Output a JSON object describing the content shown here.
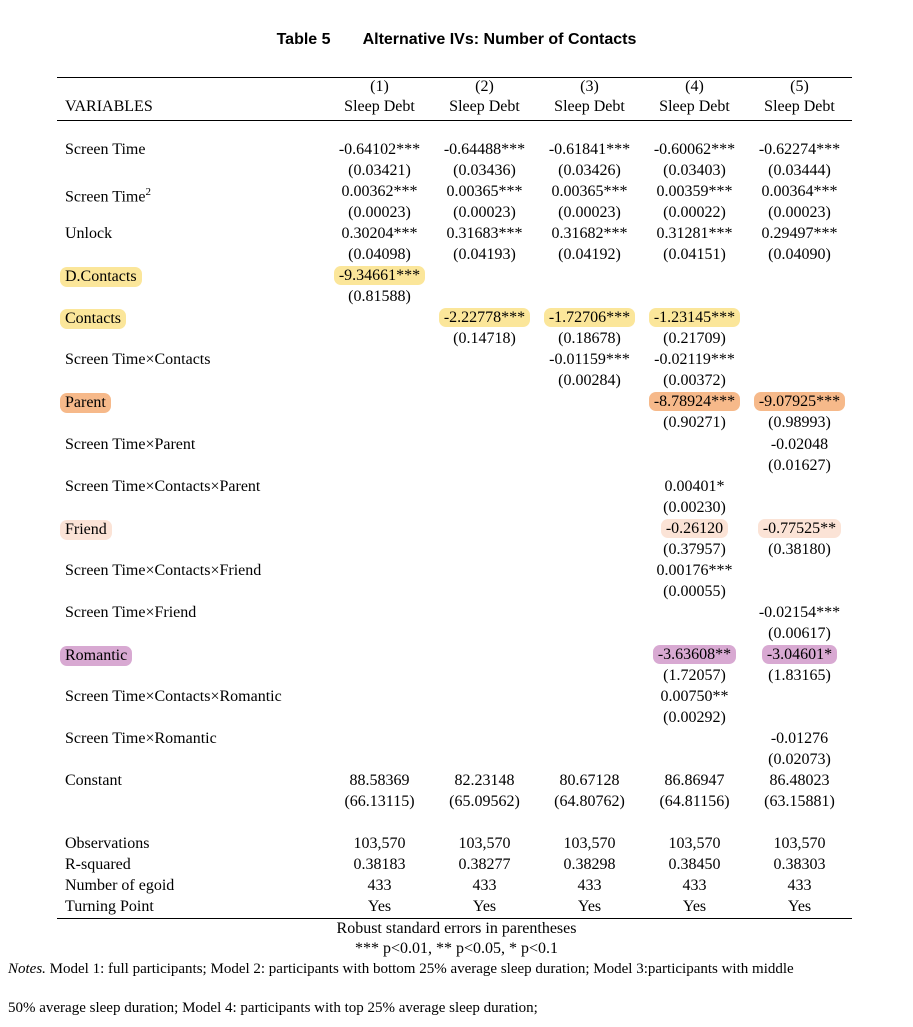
{
  "caption": {
    "number": "Table 5",
    "title": "Alternative IVs: Number of Contacts"
  },
  "header": {
    "variables_label": "VARIABLES",
    "columns": [
      {
        "num": "(1)",
        "dep": "Sleep Debt"
      },
      {
        "num": "(2)",
        "dep": "Sleep Debt"
      },
      {
        "num": "(3)",
        "dep": "Sleep Debt"
      },
      {
        "num": "(4)",
        "dep": "Sleep Debt"
      },
      {
        "num": "(5)",
        "dep": "Sleep Debt"
      }
    ]
  },
  "rows": [
    {
      "label": "Screen Time",
      "coef": [
        "-0.64102***",
        "-0.64488***",
        "-0.61841***",
        "-0.60062***",
        "-0.62274***"
      ],
      "se": [
        "(0.03421)",
        "(0.03436)",
        "(0.03426)",
        "(0.03403)",
        "(0.03444)"
      ]
    },
    {
      "label": "Screen Time",
      "label_sup": "2",
      "coef": [
        "0.00362***",
        "0.00365***",
        "0.00365***",
        "0.00359***",
        "0.00364***"
      ],
      "se": [
        "(0.00023)",
        "(0.00023)",
        "(0.00023)",
        "(0.00022)",
        "(0.00023)"
      ]
    },
    {
      "label": "Unlock",
      "coef": [
        "0.30204***",
        "0.31683***",
        "0.31682***",
        "0.31281***",
        "0.29497***"
      ],
      "se": [
        "(0.04098)",
        "(0.04193)",
        "(0.04192)",
        "(0.04151)",
        "(0.04090)"
      ]
    },
    {
      "label": "D.Contacts",
      "coef": [
        "-9.34661***",
        "",
        "",
        "",
        ""
      ],
      "se": [
        "(0.81588)",
        "",
        "",
        "",
        ""
      ]
    },
    {
      "label": "Contacts",
      "coef": [
        "",
        "-2.22778***",
        "-1.72706***",
        "-1.23145***",
        ""
      ],
      "se": [
        "",
        "(0.14718)",
        "(0.18678)",
        "(0.21709)",
        ""
      ]
    },
    {
      "label": "Screen Time×Contacts",
      "coef": [
        "",
        "",
        "-0.01159***",
        "-0.02119***",
        ""
      ],
      "se": [
        "",
        "",
        "(0.00284)",
        "(0.00372)",
        ""
      ]
    },
    {
      "label": "Parent",
      "coef": [
        "",
        "",
        "",
        "-8.78924***",
        "-9.07925***"
      ],
      "se": [
        "",
        "",
        "",
        "(0.90271)",
        "(0.98993)"
      ]
    },
    {
      "label": "Screen Time×Parent",
      "coef": [
        "",
        "",
        "",
        "",
        "-0.02048"
      ],
      "se": [
        "",
        "",
        "",
        "",
        "(0.01627)"
      ]
    },
    {
      "label": "Screen Time×Contacts×Parent",
      "coef": [
        "",
        "",
        "",
        "0.00401*",
        ""
      ],
      "se": [
        "",
        "",
        "",
        "(0.00230)",
        ""
      ]
    },
    {
      "label": "Friend",
      "coef": [
        "",
        "",
        "",
        "-0.26120",
        "-0.77525**"
      ],
      "se": [
        "",
        "",
        "",
        "(0.37957)",
        "(0.38180)"
      ]
    },
    {
      "label": "Screen Time×Contacts×Friend",
      "coef": [
        "",
        "",
        "",
        "0.00176***",
        ""
      ],
      "se": [
        "",
        "",
        "",
        "(0.00055)",
        ""
      ]
    },
    {
      "label": "Screen Time×Friend",
      "coef": [
        "",
        "",
        "",
        "",
        "-0.02154***"
      ],
      "se": [
        "",
        "",
        "",
        "",
        "(0.00617)"
      ]
    },
    {
      "label": "Romantic",
      "coef": [
        "",
        "",
        "",
        "-3.63608**",
        "-3.04601*"
      ],
      "se": [
        "",
        "",
        "",
        "(1.72057)",
        "(1.83165)"
      ]
    },
    {
      "label": "Screen Time×Contacts×Romantic",
      "coef": [
        "",
        "",
        "",
        "0.00750**",
        ""
      ],
      "se": [
        "",
        "",
        "",
        "(0.00292)",
        ""
      ]
    },
    {
      "label": "Screen Time×Romantic",
      "coef": [
        "",
        "",
        "",
        "",
        "-0.01276"
      ],
      "se": [
        "",
        "",
        "",
        "",
        "(0.02073)"
      ]
    },
    {
      "label": "Constant",
      "coef": [
        "88.58369",
        "82.23148",
        "80.67128",
        "86.86947",
        "86.48023"
      ],
      "se": [
        "(66.13115)",
        "(65.09562)",
        "(64.80762)",
        "(64.81156)",
        "(63.15881)"
      ]
    }
  ],
  "stats": [
    {
      "label": "Observations",
      "values": [
        "103,570",
        "103,570",
        "103,570",
        "103,570",
        "103,570"
      ]
    },
    {
      "label": "R-squared",
      "values": [
        "0.38183",
        "0.38277",
        "0.38298",
        "0.38450",
        "0.38303"
      ]
    },
    {
      "label": "Number of egoid",
      "values": [
        "433",
        "433",
        "433",
        "433",
        "433"
      ]
    },
    {
      "label": "Turning Point",
      "values": [
        "Yes",
        "Yes",
        "Yes",
        "Yes",
        "Yes"
      ]
    }
  ],
  "footer": {
    "line1": "Robust standard errors in parentheses",
    "line2": "*** p<0.01, ** p<0.05, * p<0.1"
  },
  "notes": {
    "prefix": "Notes.",
    "line1": " Model 1: full participants; Model 2: participants with bottom 25% average sleep duration; Model 3:participants with middle",
    "line2": "50% average sleep duration; Model 4: participants with top 25% average sleep duration;"
  },
  "highlight_colors": {
    "yellow": "#fbe69a",
    "orange": "#f6b98a",
    "peach": "#fbe3d6",
    "purple": "#d8a9d2"
  }
}
